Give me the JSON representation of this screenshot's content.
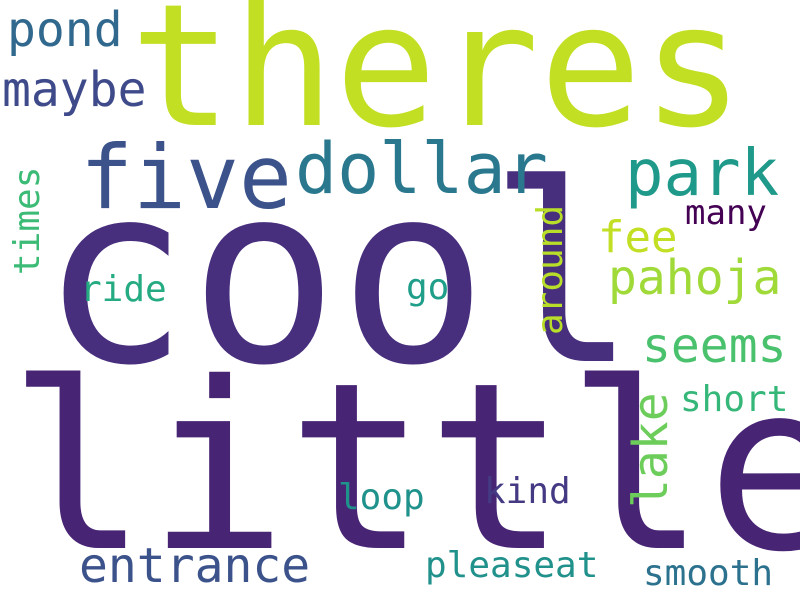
{
  "words": {
    "theres": {
      "text": "theres",
      "color": "#c2df23"
    },
    "cool": {
      "text": "cool",
      "color": "#472f7d"
    },
    "little": {
      "text": "little",
      "color": "#482475"
    },
    "five": {
      "text": "five",
      "color": "#3b528b"
    },
    "dollar": {
      "text": "dollar",
      "color": "#2a788e"
    },
    "park": {
      "text": "park",
      "color": "#1f9a8a"
    },
    "pond": {
      "text": "pond",
      "color": "#31688e"
    },
    "maybe": {
      "text": "maybe",
      "color": "#3e4a89"
    },
    "times": {
      "text": "times",
      "color": "#3bbb75"
    },
    "fee": {
      "text": "fee",
      "color": "#c2df23"
    },
    "many": {
      "text": "many",
      "color": "#440154"
    },
    "pahoja": {
      "text": "pahoja",
      "color": "#a0da39"
    },
    "ride": {
      "text": "ride",
      "color": "#25ab82"
    },
    "go": {
      "text": "go",
      "color": "#1f9e89"
    },
    "around": {
      "text": "around",
      "color": "#b8de29"
    },
    "seems": {
      "text": "seems",
      "color": "#4ac16d"
    },
    "short": {
      "text": "short",
      "color": "#35b779"
    },
    "lake": {
      "text": "lake",
      "color": "#6ccd5a"
    },
    "kind": {
      "text": "kind",
      "color": "#443983"
    },
    "loop": {
      "text": "loop",
      "color": "#20928c"
    },
    "entrance": {
      "text": "entrance",
      "color": "#3b528b"
    },
    "pleaseat": {
      "text": "pleaseat",
      "color": "#21918c"
    },
    "smooth": {
      "text": "smooth",
      "color": "#2c728e"
    }
  }
}
